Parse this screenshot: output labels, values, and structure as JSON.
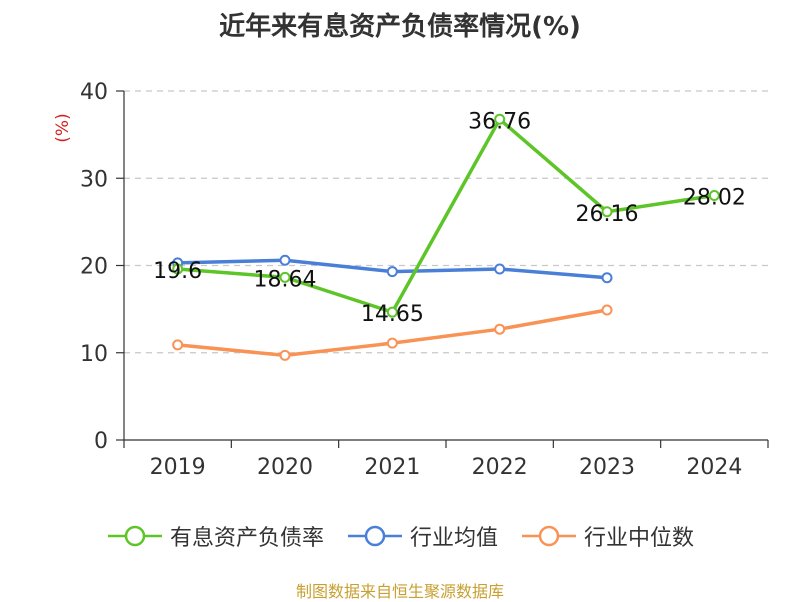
{
  "chart_data": {
    "type": "line",
    "title": "近年来有息资产负债率情况(%)",
    "ylabel": "(%)",
    "categories": [
      "2019",
      "2020",
      "2021",
      "2022",
      "2023",
      "2024"
    ],
    "ylim": [
      0,
      40
    ],
    "yticks": [
      0,
      10,
      20,
      30,
      40
    ],
    "grid": true,
    "legend_position": "bottom",
    "series": [
      {
        "name": "有息资产负债率",
        "color": "#5dc528",
        "values": [
          19.6,
          18.64,
          14.65,
          36.76,
          26.16,
          28.02
        ],
        "labels": [
          "19.6",
          "18.64",
          "14.65",
          "36.76",
          "26.16",
          "28.02"
        ]
      },
      {
        "name": "行业均值",
        "color": "#4a7fd8",
        "values": [
          20.3,
          20.6,
          19.3,
          19.6,
          18.6,
          null
        ]
      },
      {
        "name": "行业中位数",
        "color": "#f99355",
        "values": [
          10.9,
          9.7,
          11.1,
          12.7,
          14.9,
          null
        ]
      }
    ]
  },
  "source": "制图数据来自恒生聚源数据库"
}
